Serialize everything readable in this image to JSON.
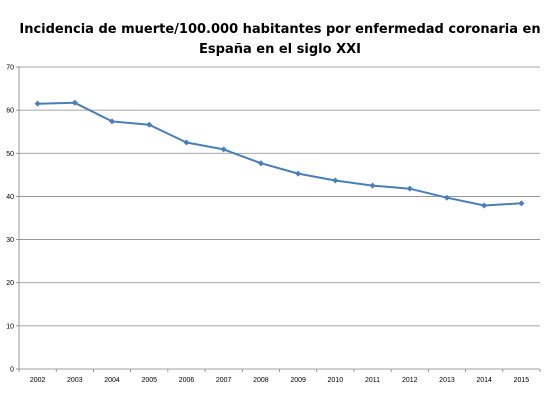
{
  "chart_data": {
    "type": "line",
    "title_lines": [
      "Incidencia de muerte/100.000 habitantes por enfermedad coronaria en",
      "España en el siglo XXI"
    ],
    "xlabel": "",
    "ylabel": "",
    "categories": [
      "2002",
      "2003",
      "2004",
      "2005",
      "2006",
      "2007",
      "2008",
      "2009",
      "2010",
      "2011",
      "2012",
      "2013",
      "2014",
      "2015"
    ],
    "series": [
      {
        "values": [
          61.5,
          61.7,
          57.4,
          56.6,
          52.5,
          50.9,
          47.7,
          45.3,
          43.7,
          42.5,
          41.8,
          39.7,
          37.9,
          38.4
        ]
      }
    ],
    "ylim": [
      0,
      70
    ],
    "yticks": [
      "0",
      "10",
      "20",
      "30",
      "40",
      "50",
      "60",
      "70"
    ],
    "grid": true,
    "legend": "none",
    "colors": {
      "line": "#4a7ebb",
      "grid": "#888888",
      "axis": "#808080"
    }
  }
}
